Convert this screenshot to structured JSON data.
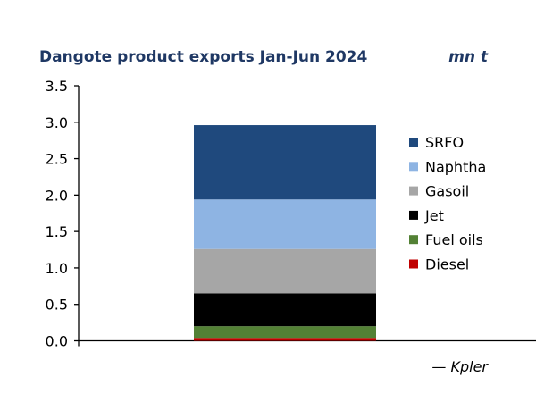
{
  "chart_data": {
    "type": "bar",
    "stacked": true,
    "title": "Dangote product exports Jan-Jun 2024",
    "unit_label": "mn t",
    "source": "— Kpler",
    "categories": [
      ""
    ],
    "ylim": [
      0,
      3.5
    ],
    "yticks": [
      "0.0",
      "0.5",
      "1.0",
      "1.5",
      "2.0",
      "2.5",
      "3.0",
      "3.5"
    ],
    "grid": false,
    "legend_position": "right",
    "series": [
      {
        "name": "Diesel",
        "values": [
          0.04
        ],
        "color": "#c00000"
      },
      {
        "name": "Fuel oils",
        "values": [
          0.16
        ],
        "color": "#538135"
      },
      {
        "name": "Jet",
        "values": [
          0.45
        ],
        "color": "#000000"
      },
      {
        "name": "Gasoil",
        "values": [
          0.61
        ],
        "color": "#a6a6a6"
      },
      {
        "name": "Naphtha",
        "values": [
          0.68
        ],
        "color": "#8eb4e3"
      },
      {
        "name": "SRFO",
        "values": [
          1.02
        ],
        "color": "#1f497d"
      }
    ]
  }
}
